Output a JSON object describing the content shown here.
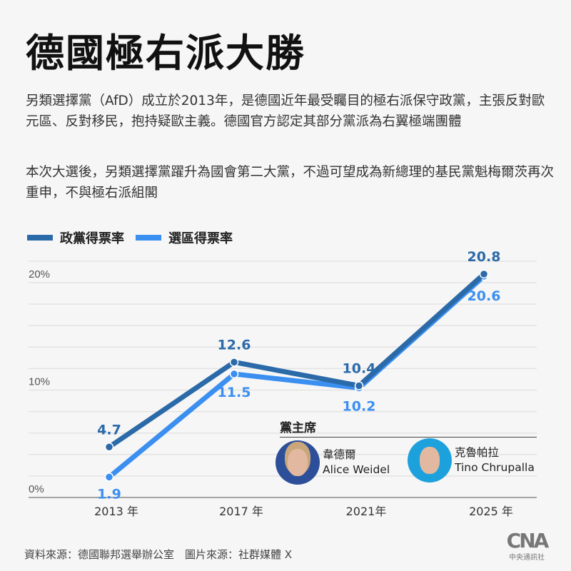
{
  "title": "德國極右派大勝",
  "paragraphs": [
    "另類選擇黨（AfD）成立於2013年，是德國近年最受矚目的極右派保守政黨，主張反對歐元區、反對移民，抱持疑歐主義。德國官方認定其部分黨派為右翼極端團體",
    "本次大選後，另類選擇黨躍升為國會第二大黨，不過可望成為新總理的基民黨魁梅爾茨再次重申，不與極右派組閣"
  ],
  "chart_data": {
    "type": "line",
    "x": [
      "2013 年",
      "2017 年",
      "2021年",
      "2025 年"
    ],
    "series": [
      {
        "name": "政黨得票率",
        "color": "#2b6aa8",
        "values": [
          4.7,
          12.6,
          10.4,
          20.8
        ],
        "labels": [
          "4.7",
          "12.6",
          "10.4",
          "20.8"
        ]
      },
      {
        "name": "選區得票率",
        "color": "#3b8ff0",
        "values": [
          1.9,
          11.5,
          10.2,
          20.6
        ],
        "labels": [
          "1.9",
          "11.5",
          "10.2",
          "20.6"
        ]
      }
    ],
    "yticks": [
      "0%",
      "10%",
      "20%"
    ],
    "ytick_values": [
      0,
      10,
      20
    ],
    "ylim": [
      0,
      22
    ],
    "grid_step": 2,
    "grid": true,
    "legend": "top-left"
  },
  "chairs": {
    "title": "黨主席",
    "people": [
      {
        "zh": "韋德爾",
        "en": "Alice Weidel"
      },
      {
        "zh": "克魯帕拉",
        "en": "Tino Chrupalla"
      }
    ]
  },
  "footer": "資料來源：德國聯邦選舉辦公室　圖片來源：社群媒體 X",
  "logo": {
    "mark": "CNA",
    "sub": "中央通訊社"
  }
}
